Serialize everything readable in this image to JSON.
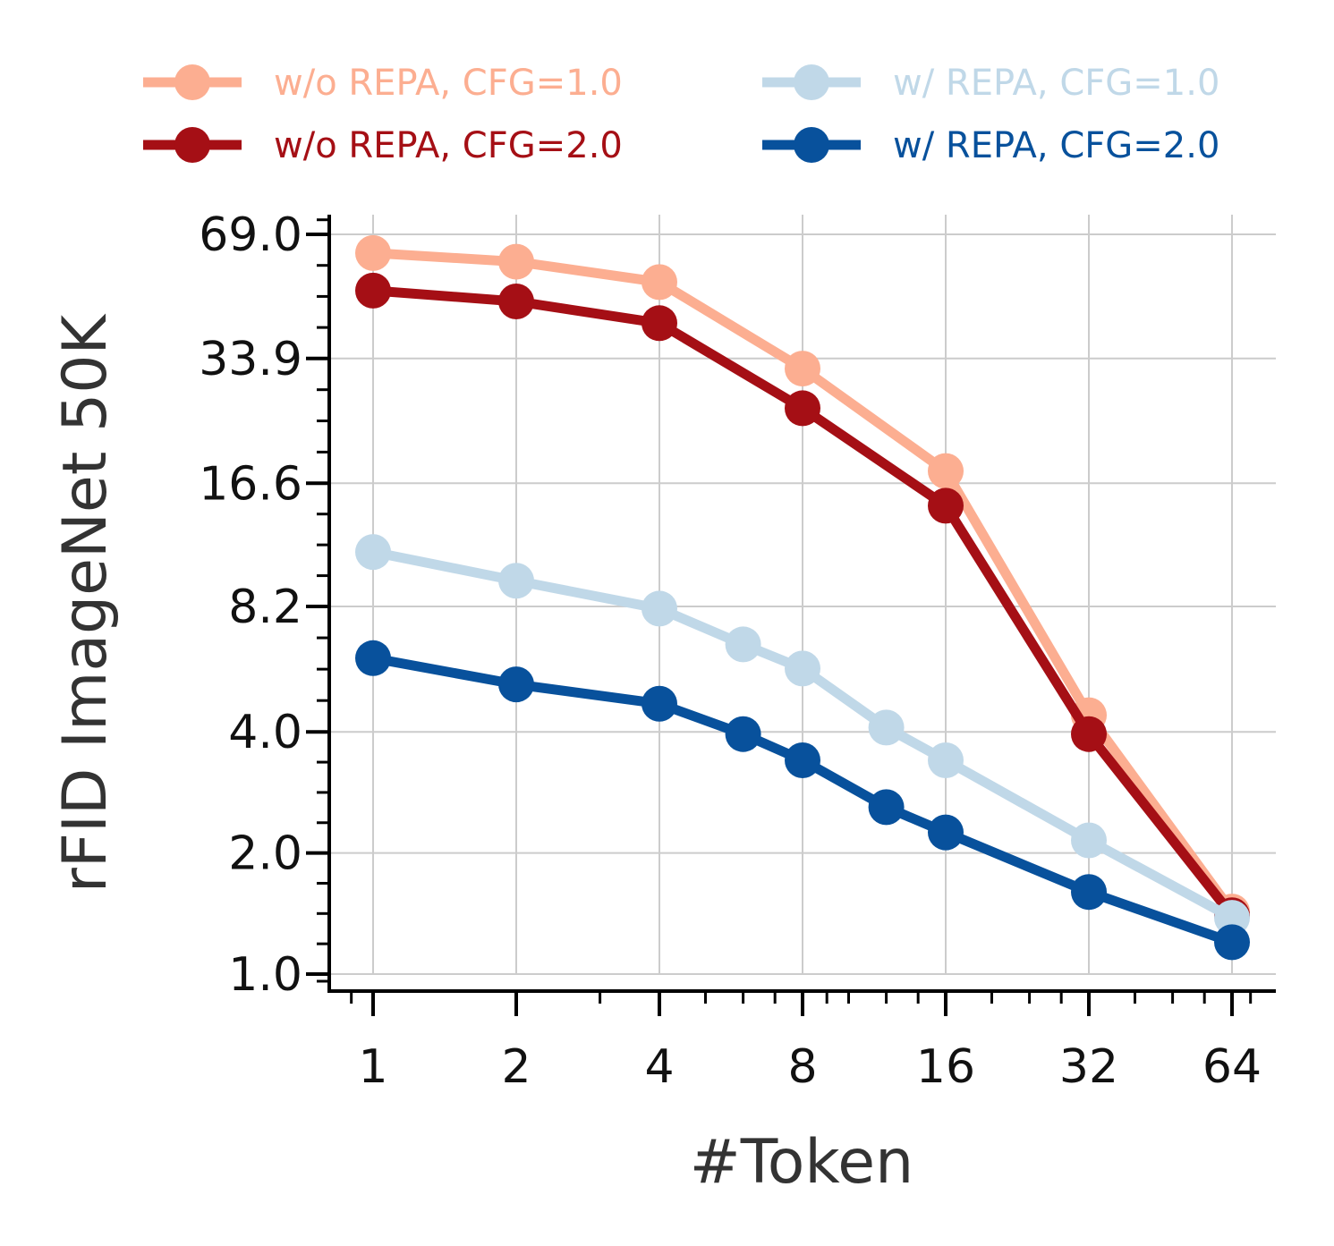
{
  "chart_data": {
    "type": "line",
    "title": "",
    "xlabel": "#Token",
    "ylabel": "rFID ImageNet 50K",
    "xscale": "log2",
    "yscale": "log",
    "xlim": [
      0.85,
      75
    ],
    "ylim": [
      0.93,
      80
    ],
    "x_ticks": [
      1,
      2,
      4,
      8,
      16,
      32,
      64
    ],
    "x_tick_labels": [
      "1",
      "2",
      "4",
      "8",
      "16",
      "32",
      "64"
    ],
    "y_ticks": [
      1.0,
      2.0,
      4.0,
      8.2,
      16.6,
      33.9,
      69.0
    ],
    "y_tick_labels": [
      "1.0",
      "2.0",
      "4.0",
      "8.2",
      "16.6",
      "33.9",
      "69.0"
    ],
    "grid": true,
    "legend_position": "top",
    "series": [
      {
        "name": "w/o REPA, CFG=1.0",
        "color": "#fcae91",
        "x": [
          1,
          2,
          4,
          8,
          16,
          32,
          64
        ],
        "values": [
          62.0,
          59.0,
          52.5,
          32.0,
          17.8,
          4.4,
          1.43
        ]
      },
      {
        "name": "w/o REPA, CFG=2.0",
        "color": "#a50f15",
        "x": [
          1,
          2,
          4,
          8,
          16,
          32,
          64
        ],
        "values": [
          50.0,
          47.0,
          41.5,
          25.5,
          14.6,
          3.95,
          1.4
        ]
      },
      {
        "name": "w/ REPA, CFG=1.0",
        "color": "#c0d8e8",
        "x": [
          1,
          2,
          4,
          6,
          8,
          12,
          16,
          32,
          64
        ],
        "values": [
          11.2,
          9.5,
          8.1,
          6.6,
          5.75,
          4.1,
          3.4,
          2.15,
          1.38
        ]
      },
      {
        "name": "w/ REPA, CFG=2.0",
        "color": "#08519c",
        "x": [
          1,
          2,
          4,
          6,
          8,
          12,
          16,
          32,
          64
        ],
        "values": [
          6.1,
          5.25,
          4.7,
          3.95,
          3.4,
          2.6,
          2.25,
          1.6,
          1.2
        ]
      }
    ]
  }
}
